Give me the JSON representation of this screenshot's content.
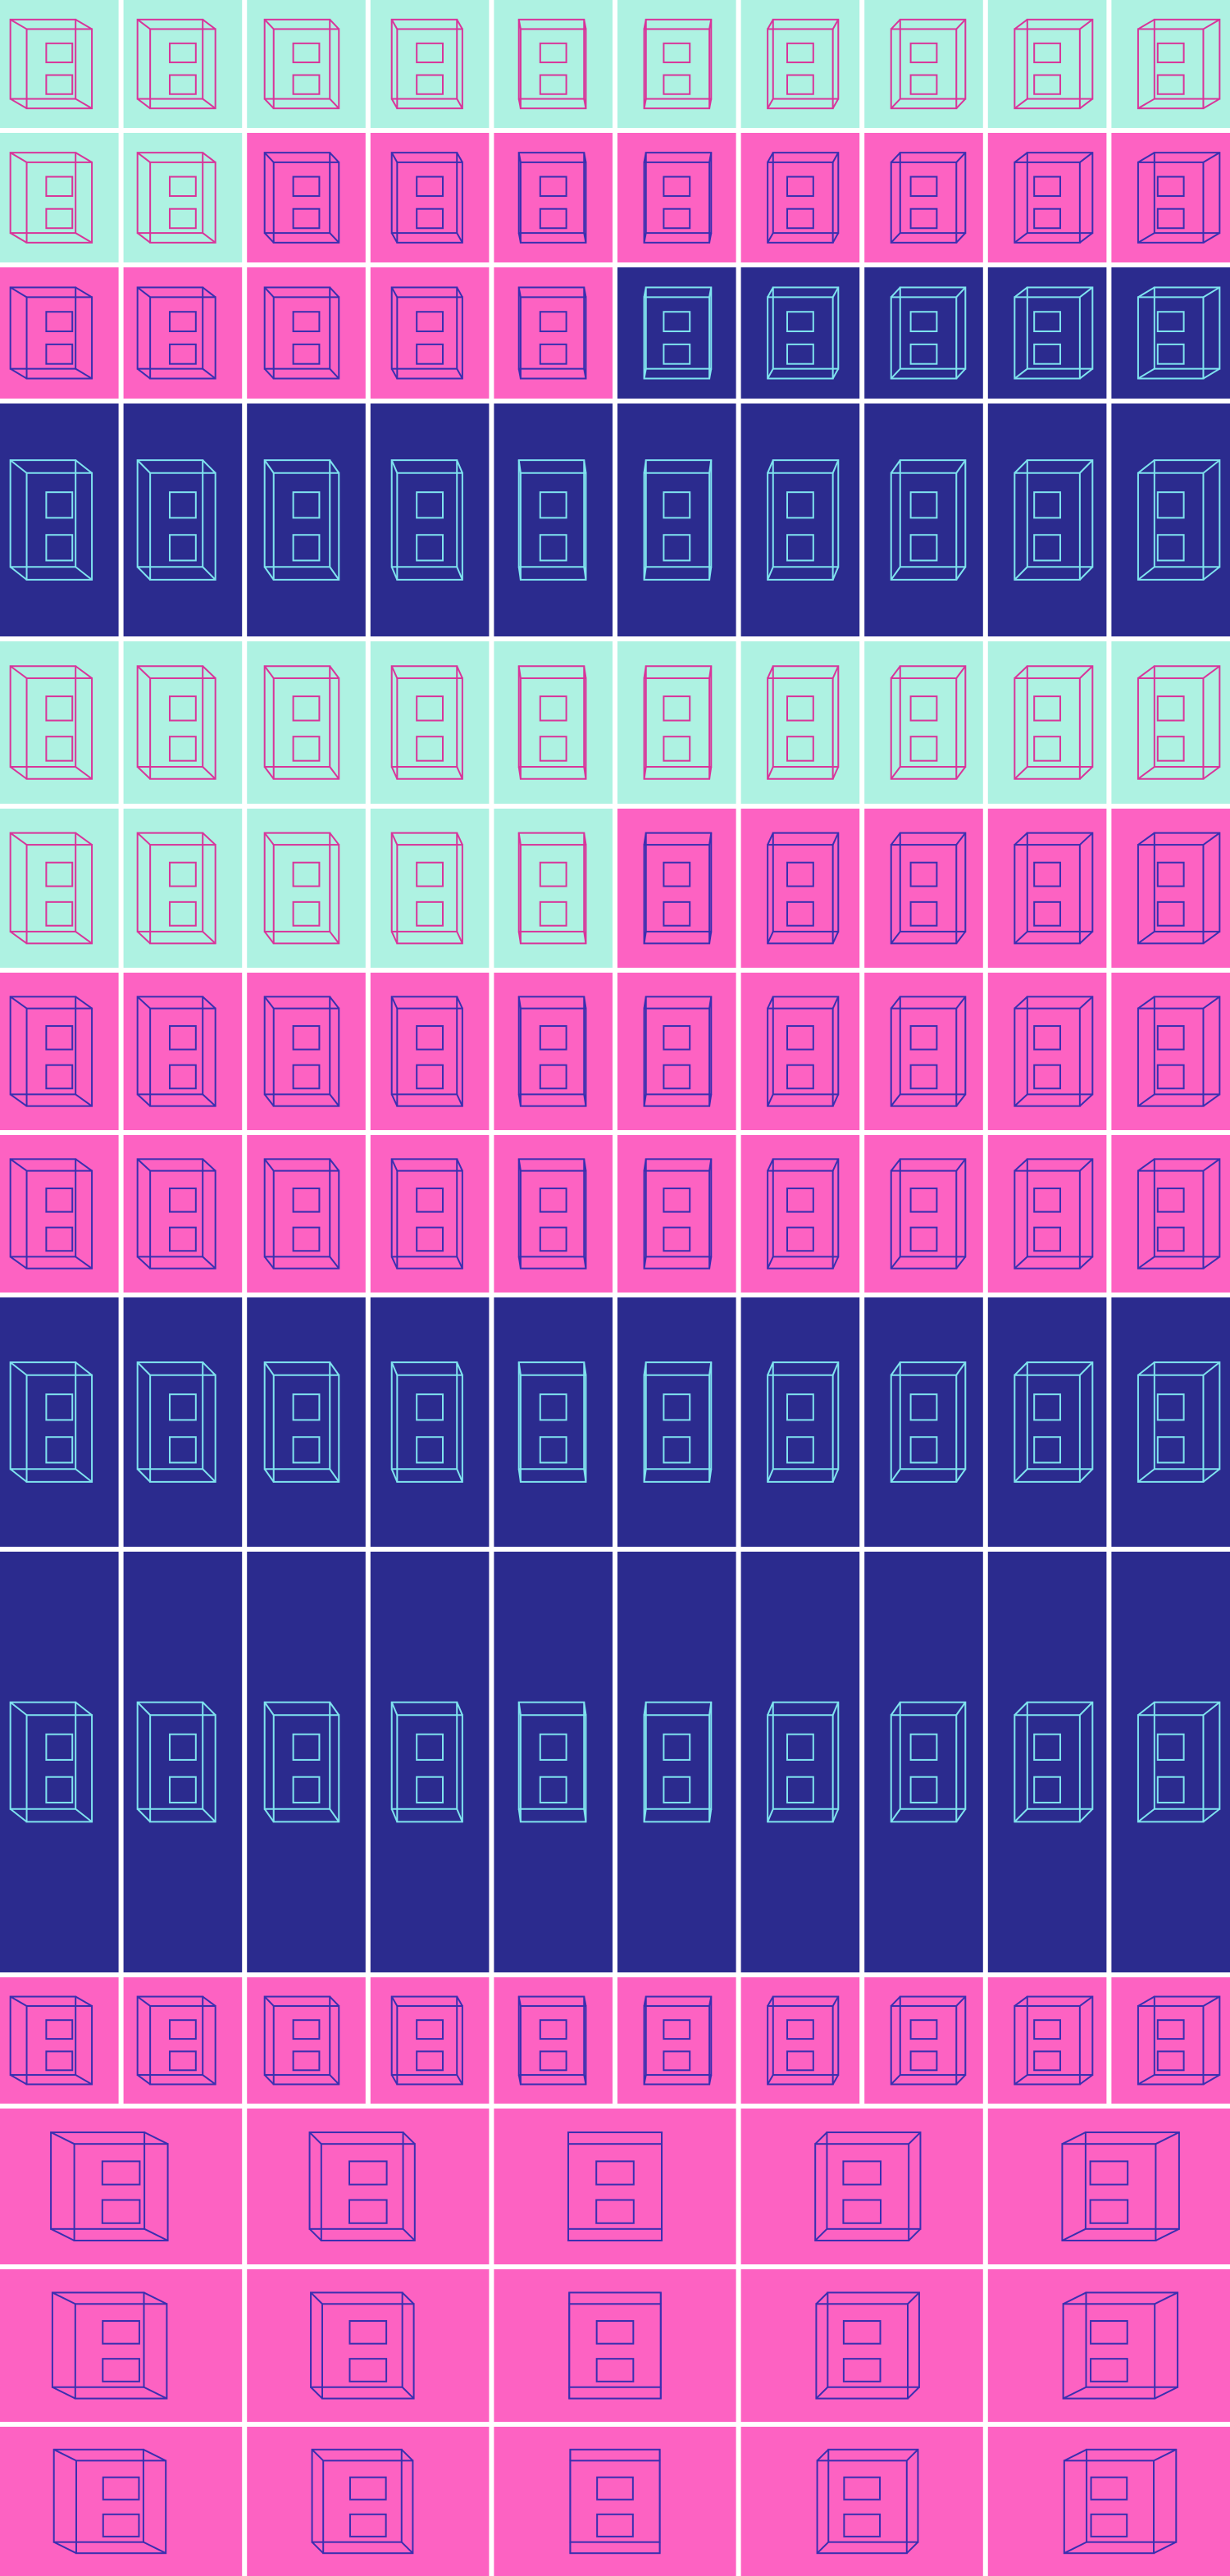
{
  "rows": [
    {
      "fills": [
        "#aef2e2",
        "#aef2e2",
        "#aef2e2",
        "#aef2e2",
        "#aef2e2",
        "#aef2e2",
        "#aef2e2",
        "#aef2e2",
        "#aef2e2",
        "#aef2e2"
      ]
    },
    {
      "fills": [
        "#aef2e2",
        "#aef2e2",
        "#fd62c2",
        "#fd62c2",
        "#fd62c2",
        "#fd62c2",
        "#fd62c2",
        "#fd62c2",
        "#fd62c2",
        "#fd62c2"
      ]
    },
    {
      "fills": [
        "#fd62c2",
        "#fd62c2",
        "#fd62c2",
        "#fd62c2",
        "#fd62c2",
        "#2b2b8e",
        "#2b2b8e",
        "#2b2b8e",
        "#2b2b8e",
        "#2b2b8e"
      ]
    },
    {
      "fills": [
        "#2b2b8e",
        "#2b2b8e",
        "#2b2b8e",
        "#2b2b8e",
        "#2b2b8e",
        "#2b2b8e",
        "#2b2b8e",
        "#2b2b8e",
        "#2b2b8e",
        "#2b2b8e"
      ]
    },
    {
      "fills": [
        "#aef2e2",
        "#aef2e2",
        "#aef2e2",
        "#aef2e2",
        "#aef2e2",
        "#aef2e2",
        "#aef2e2",
        "#aef2e2",
        "#aef2e2",
        "#aef2e2"
      ]
    },
    {
      "fills": [
        "#aef2e2",
        "#aef2e2",
        "#aef2e2",
        "#aef2e2",
        "#aef2e2",
        "#fd62c2",
        "#fd62c2",
        "#fd62c2",
        "#fd62c2",
        "#fd62c2"
      ]
    },
    {
      "fills": [
        "#fd62c2",
        "#fd62c2",
        "#fd62c2",
        "#fd62c2",
        "#fd62c2",
        "#fd62c2",
        "#fd62c2",
        "#fd62c2",
        "#fd62c2",
        "#fd62c2"
      ]
    },
    {
      "fills": [
        "#fd62c2",
        "#fd62c2",
        "#fd62c2",
        "#fd62c2",
        "#fd62c2",
        "#fd62c2",
        "#fd62c2",
        "#fd62c2",
        "#fd62c2",
        "#fd62c2"
      ]
    },
    {
      "fills": [
        "#2b2b8e",
        "#2b2b8e",
        "#2b2b8e",
        "#2b2b8e",
        "#2b2b8e",
        "#2b2b8e",
        "#2b2b8e",
        "#2b2b8e",
        "#2b2b8e",
        "#2b2b8e"
      ]
    },
    {
      "fills": [
        "#2b2b8e",
        "#2b2b8e",
        "#2b2b8e",
        "#2b2b8e",
        "#2b2b8e",
        "#2b2b8e",
        "#2b2b8e",
        "#2b2b8e",
        "#2b2b8e",
        "#2b2b8e"
      ]
    },
    {
      "fills": [
        "#fd62c2",
        "#fd62c2",
        "#fd62c2",
        "#fd62c2",
        "#fd62c2",
        "#fd62c2",
        "#fd62c2",
        "#fd62c2",
        "#fd62c2",
        "#fd62c2"
      ]
    },
    {
      "fills": [
        "#fd62c2",
        "#fd62c2",
        "#fd62c2",
        "#fd62c2",
        "#fd62c2"
      ]
    },
    {
      "fills": [
        "#fd62c2",
        "#fd62c2",
        "#fd62c2",
        "#fd62c2",
        "#fd62c2"
      ]
    },
    {
      "fills": [
        "#fd62c2",
        "#fd62c2",
        "#fd62c2",
        "#fd62c2",
        "#fd62c2"
      ]
    }
  ],
  "strokes": {
    "#aef2e2": "#d8359a",
    "#fd62c2": "#3a2fb0",
    "#2b2b8e": "#7fe3ef"
  }
}
